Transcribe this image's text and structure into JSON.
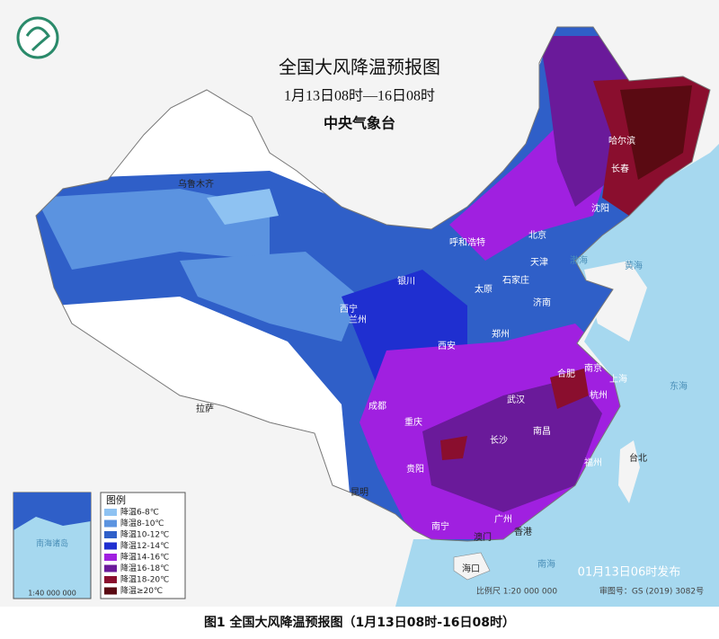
{
  "header": {
    "title": "全国大风降温预报图",
    "subtitle": "1月13日08时—16日08时",
    "issuer": "中央气象台"
  },
  "legend": {
    "title": "图例",
    "items": [
      {
        "label": "降温6-8℃",
        "color": "#8ec2f2"
      },
      {
        "label": "降温8-10℃",
        "color": "#5b93e0"
      },
      {
        "label": "降温10-12℃",
        "color": "#2f5fc8"
      },
      {
        "label": "降温12-14℃",
        "color": "#1f2fd0"
      },
      {
        "label": "降温14-16℃",
        "color": "#a020e0"
      },
      {
        "label": "降温16-18℃",
        "color": "#6a1a9a"
      },
      {
        "label": "降温18-20℃",
        "color": "#8a0e2e"
      },
      {
        "label": "降温≥20℃",
        "color": "#5a0a12"
      }
    ]
  },
  "cities": [
    "乌鲁木齐",
    "拉萨",
    "成都",
    "重庆",
    "贵阳",
    "昆明",
    "南宁",
    "广州",
    "澳门",
    "香港",
    "海口",
    "台北",
    "福州",
    "南昌",
    "长沙",
    "武汉",
    "合肥",
    "南京",
    "上海",
    "杭州",
    "西安",
    "郑州",
    "济南",
    "石家庄",
    "太原",
    "北京",
    "天津",
    "沈阳",
    "长春",
    "哈尔滨",
    "呼和浩特",
    "银川",
    "兰州",
    "西宁"
  ],
  "seas": [
    "渤海",
    "黄海",
    "东海",
    "南海"
  ],
  "inset": {
    "title": "南海诸岛",
    "scale": "1:40 000 000"
  },
  "footer": {
    "release": "01月13日06时发布",
    "scale": "比例尺 1:20 000 000",
    "approval": "审图号：GS (2019) 3082号"
  },
  "caption": "图1 全国大风降温预报图（1月13日08时-16日08时）"
}
